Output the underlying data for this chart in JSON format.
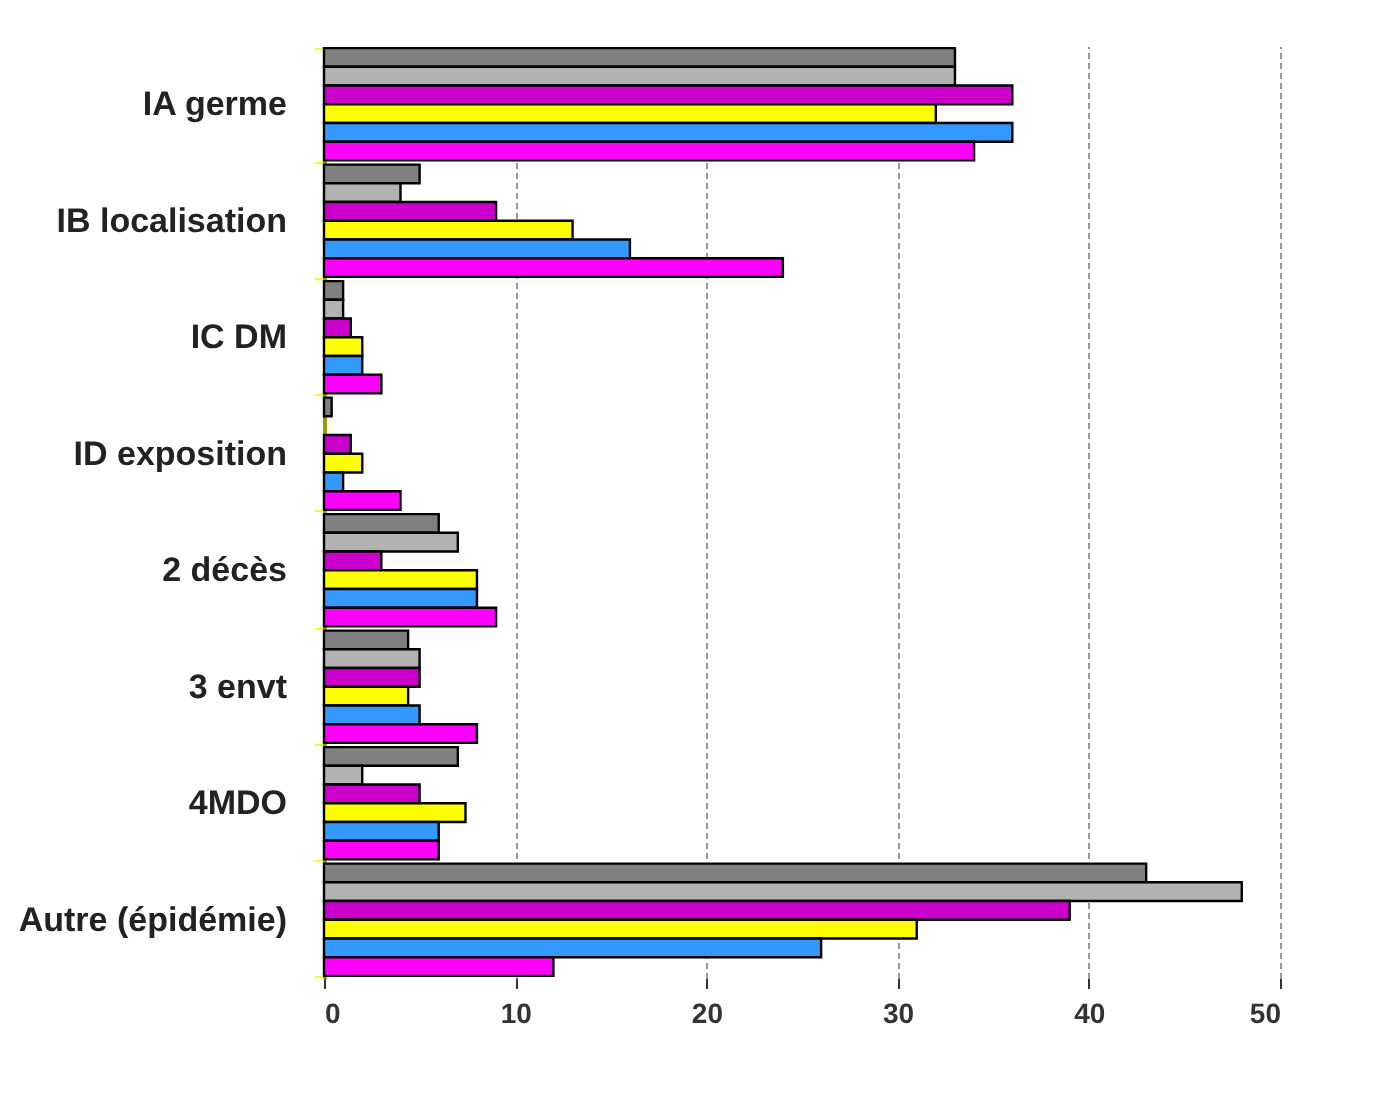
{
  "chart_data": {
    "type": "bar",
    "orientation": "horizontal",
    "categories": [
      "IA germe",
      "IB localisation",
      "IC DM",
      "ID exposition",
      "2 décès",
      "3 envt",
      "4MDO",
      "Autre (épidémie)"
    ],
    "series": [
      {
        "color": "#808080",
        "values": [
          33,
          5,
          1,
          0.4,
          6,
          4.4,
          7,
          43
        ]
      },
      {
        "color": "#b2b2b2",
        "values": [
          33,
          4,
          1,
          null,
          7,
          5,
          2,
          48
        ]
      },
      {
        "color": "#cc00cc",
        "values": [
          36,
          9,
          1.4,
          1.4,
          3,
          5,
          5,
          39
        ]
      },
      {
        "color": "#ffff00",
        "values": [
          32,
          13,
          2,
          2,
          8,
          4.4,
          7.4,
          31
        ]
      },
      {
        "color": "#3399ff",
        "values": [
          36,
          16,
          2,
          1,
          8,
          5,
          6,
          26
        ]
      },
      {
        "color": "#ff00ff",
        "values": [
          34,
          24,
          3,
          4,
          9,
          8,
          6,
          12
        ]
      }
    ],
    "xlim": [
      0,
      50
    ],
    "xticks": [
      0,
      10,
      20,
      30,
      40,
      50
    ],
    "grid": "x",
    "legend": false
  }
}
